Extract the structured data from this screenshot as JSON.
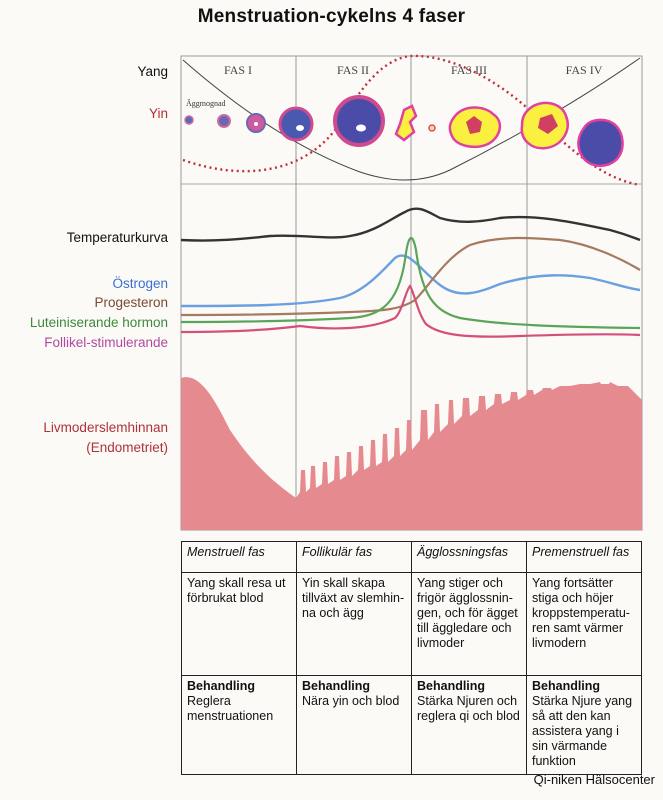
{
  "title": "Menstruation-cykelns 4 faser",
  "labels": {
    "yang": "Yang",
    "yin": "Yin",
    "temperature": "Temperaturkurva",
    "estrogen": "Östrogen",
    "progesterone": "Progesteron",
    "lh": "Luteiniserande hormon",
    "fsh": "Follikel-stimulerande",
    "endometrium_1": "Livmoderslemhinnan",
    "endometrium_2": "(Endometriet)",
    "egg_maturation": "Äggmognad"
  },
  "phases": [
    "FAS I",
    "FAS II",
    "FAS III",
    "FAS IV"
  ],
  "colors": {
    "yin": "#c0303c",
    "estrogen": "#6aa0e0",
    "progesterone": "#a67a60",
    "lh": "#5aa55a",
    "fsh": "#d4507a",
    "endometrium": "#e58a8e"
  },
  "table": {
    "headers": [
      "Menstruell fas",
      "Follikulär fas",
      "Ägglossningsfas",
      "Premenstruell fas"
    ],
    "descriptions": [
      "Yang skall resa ut förbrukat blod",
      "Yin skall skapa tillväxt av slemhin-na och ägg",
      "Yang stiger och frigör ägglossnin-gen, och för ägget till äggledare och livmoder",
      "Yang fortsätter stiga och höjer kroppstemperatu-ren samt värmer livmodern"
    ],
    "treatment_label": "Behandling",
    "treatments": [
      "Reglera menstruationen",
      "Nära yin och blod",
      "Stärka Njuren och reglera qi och blod",
      "Stärka Njure yang så att den kan assistera yang i sin värmande funktion"
    ]
  },
  "credit": "Qi-niken Hälsocenter"
}
